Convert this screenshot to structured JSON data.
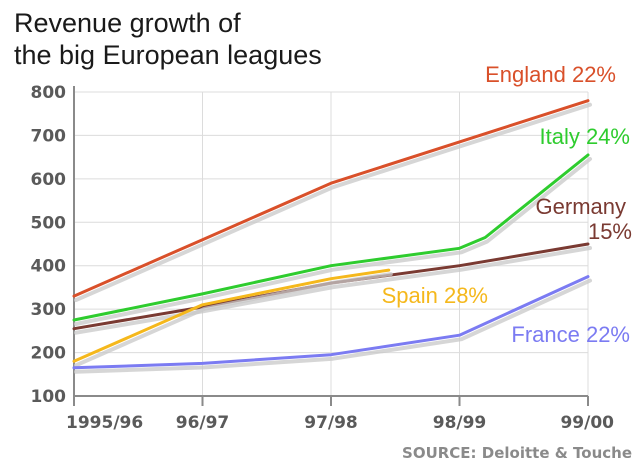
{
  "chart_data": {
    "type": "line",
    "title": [
      "Revenue growth of",
      "the big European leagues"
    ],
    "categories": [
      "1995/96",
      "96/97",
      "97/98",
      "98/99",
      "99/00"
    ],
    "ylim": [
      100,
      800
    ],
    "yticks": [
      "800",
      "700",
      "600",
      "500",
      "400",
      "300",
      "200",
      "100"
    ],
    "ytick_values": [
      800,
      700,
      600,
      500,
      400,
      300,
      200,
      100
    ],
    "grid": true,
    "xlabel": "",
    "ylabel": "",
    "source": "SOURCE: Deloitte & Touche",
    "series": [
      {
        "name": "England",
        "label": "England 22%",
        "color": "#d9502a",
        "x": [
          0,
          1,
          2,
          3,
          4
        ],
        "values": [
          330,
          460,
          590,
          685,
          780
        ]
      },
      {
        "name": "Italy",
        "label": "Italy 24%",
        "color": "#2ecc2e",
        "x": [
          0,
          1,
          2,
          3,
          3.2,
          4
        ],
        "values": [
          275,
          335,
          400,
          440,
          465,
          655
        ]
      },
      {
        "name": "Germany",
        "label_lines": [
          "Germany",
          "15%"
        ],
        "color": "#7a3a32",
        "x": [
          0,
          1,
          2,
          3,
          4
        ],
        "values": [
          255,
          305,
          360,
          400,
          450
        ]
      },
      {
        "name": "Spain",
        "label": "Spain 28%",
        "color": "#f5b81c",
        "x": [
          0,
          1,
          2,
          2.45
        ],
        "values": [
          180,
          310,
          370,
          390
        ]
      },
      {
        "name": "France",
        "label": "France 22%",
        "color": "#7b7bf2",
        "x": [
          0,
          1,
          2,
          3,
          4
        ],
        "values": [
          165,
          175,
          195,
          240,
          375
        ]
      }
    ]
  }
}
